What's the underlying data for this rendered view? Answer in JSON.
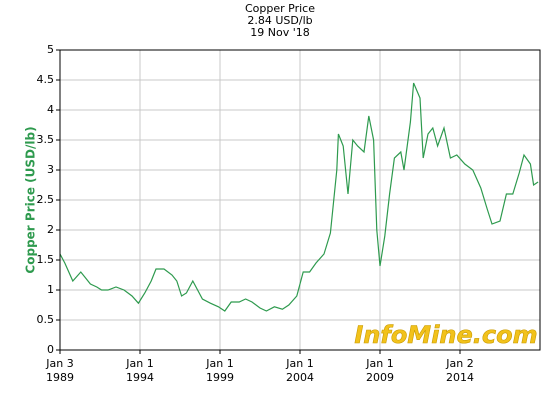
{
  "chart_data": {
    "type": "line",
    "title": "Copper Price",
    "subtitle": "2.84 USD/lb",
    "date": "19 Nov '18",
    "y_label": "Copper Price (USD/lb)",
    "watermark": "InfoMine.com",
    "x": [
      1989.0,
      1989.3,
      1989.8,
      1990.3,
      1990.6,
      1990.9,
      1991.3,
      1991.6,
      1992.0,
      1992.5,
      1993.0,
      1993.5,
      1993.9,
      1994.3,
      1994.7,
      1995.0,
      1995.5,
      1996.0,
      1996.3,
      1996.6,
      1996.9,
      1997.3,
      1997.6,
      1997.9,
      1998.4,
      1998.9,
      1999.3,
      1999.7,
      2000.2,
      2000.6,
      2001.0,
      2001.5,
      2001.9,
      2002.4,
      2002.9,
      2003.3,
      2003.8,
      2004.2,
      2004.6,
      2005.0,
      2005.5,
      2005.9,
      2006.3,
      2006.4,
      2006.7,
      2007.0,
      2007.3,
      2007.6,
      2008.0,
      2008.3,
      2008.6,
      2008.8,
      2009.0,
      2009.3,
      2009.6,
      2009.9,
      2010.3,
      2010.5,
      2010.9,
      2011.1,
      2011.5,
      2011.7,
      2012.0,
      2012.3,
      2012.6,
      2013.0,
      2013.4,
      2013.8,
      2014.3,
      2014.8,
      2015.3,
      2015.7,
      2016.0,
      2016.5,
      2016.9,
      2017.3,
      2017.7,
      2018.0,
      2018.4,
      2018.6,
      2018.88
    ],
    "series": [
      {
        "name": "Copper Price",
        "color": "#2e9a4e",
        "values": [
          1.6,
          1.45,
          1.15,
          1.3,
          1.2,
          1.1,
          1.05,
          1.0,
          1.0,
          1.05,
          1.0,
          0.9,
          0.78,
          0.95,
          1.15,
          1.35,
          1.35,
          1.25,
          1.15,
          0.9,
          0.95,
          1.15,
          1.0,
          0.85,
          0.78,
          0.72,
          0.65,
          0.8,
          0.8,
          0.85,
          0.8,
          0.7,
          0.65,
          0.72,
          0.68,
          0.75,
          0.9,
          1.3,
          1.3,
          1.45,
          1.6,
          1.95,
          3.0,
          3.6,
          3.4,
          2.6,
          3.5,
          3.4,
          3.3,
          3.9,
          3.5,
          2.0,
          1.4,
          1.9,
          2.6,
          3.2,
          3.3,
          3.0,
          3.8,
          4.45,
          4.2,
          3.2,
          3.6,
          3.7,
          3.4,
          3.7,
          3.2,
          3.25,
          3.1,
          3.0,
          2.7,
          2.35,
          2.1,
          2.15,
          2.6,
          2.6,
          2.95,
          3.25,
          3.1,
          2.75,
          2.8
        ]
      }
    ],
    "xlim": [
      1989.0,
      2019.0
    ],
    "xticks": [
      {
        "value": 1989.0,
        "label": "Jan 3",
        "sublabel": "1989"
      },
      {
        "value": 1994.0,
        "label": "Jan 1",
        "sublabel": "1994"
      },
      {
        "value": 1999.0,
        "label": "Jan 1",
        "sublabel": "1999"
      },
      {
        "value": 2004.0,
        "label": "Jan 1",
        "sublabel": "2004"
      },
      {
        "value": 2009.0,
        "label": "Jan 1",
        "sublabel": "2009"
      },
      {
        "value": 2014.0,
        "label": "Jan 2",
        "sublabel": "2014"
      }
    ],
    "ylim": [
      0,
      5
    ],
    "yticks": [
      0,
      0.5,
      1,
      1.5,
      2,
      2.5,
      3,
      3.5,
      4,
      4.5,
      5
    ],
    "grid": true
  }
}
